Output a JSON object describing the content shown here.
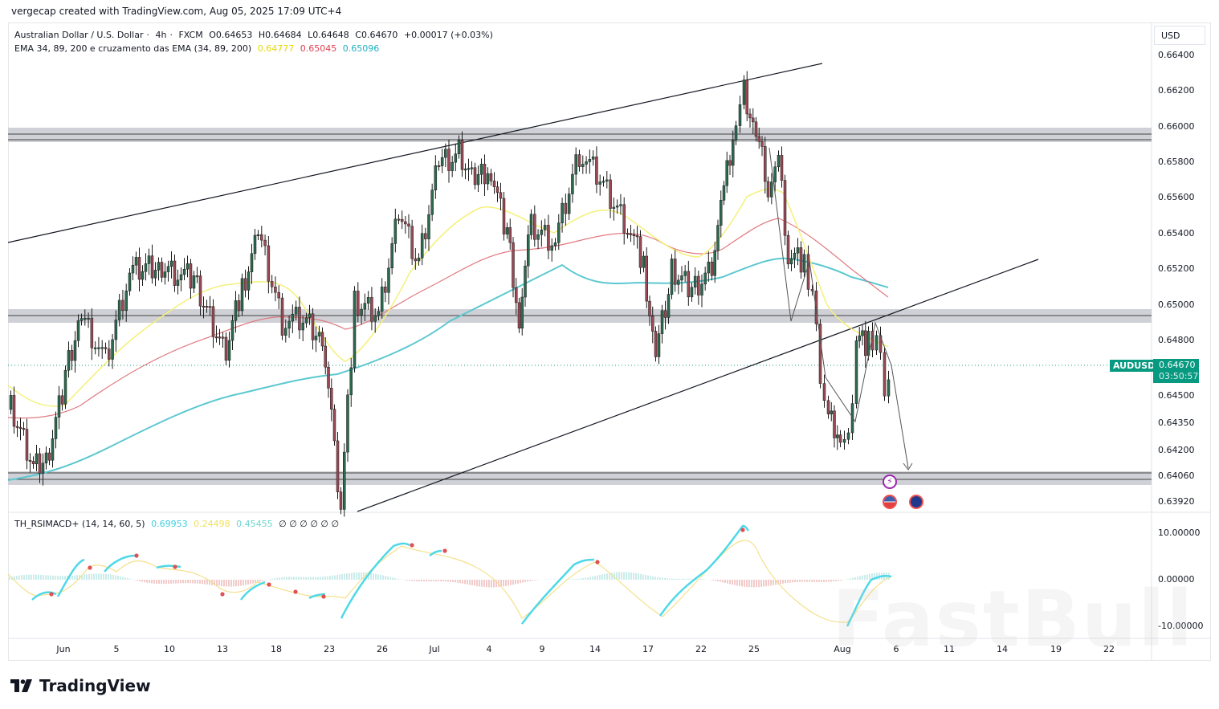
{
  "credit": "vergecap created with TradingView.com, Aug 05, 2025 17:09 UTC+4",
  "legend": {
    "symbol": "Australian Dollar / U.S. Dollar",
    "interval": "4h",
    "exchange": "FXCM",
    "open": "O0.64653",
    "high": "H0.64684",
    "low": "L0.64648",
    "close": "C0.64670",
    "change": "+0.00017 (+0.03%)",
    "ema_title": "EMA 34, 89, 200 e cruzamento das EMA (34, 89, 200)",
    "ema34": "0.64777",
    "ema89": "0.65045",
    "ema200": "0.65096"
  },
  "indicator": {
    "title": "TH_RSIMACD+ (14, 14, 60, 5)",
    "v1": "0.69953",
    "v2": "0.24498",
    "v3": "0.45455",
    "empties": "∅ ∅ ∅ ∅ ∅ ∅"
  },
  "price_axis": {
    "currency": "USD",
    "ticks": [
      "0.66400",
      "0.66200",
      "0.66000",
      "0.65800",
      "0.65600",
      "0.65400",
      "0.65200",
      "0.65000",
      "0.64800",
      "0.64500",
      "0.64350",
      "0.64200",
      "0.64060",
      "0.63920"
    ]
  },
  "indicator_axis": {
    "ticks": [
      "10.00000",
      "0.00000",
      "-10.00000"
    ]
  },
  "last_price": {
    "symbol": "AUDUSD",
    "price": "0.64670",
    "countdown": "03:50:57"
  },
  "time_axis": [
    "Jun",
    "5",
    "10",
    "13",
    "18",
    "23",
    "26",
    "Jul",
    "4",
    "9",
    "14",
    "17",
    "22",
    "25",
    "Aug",
    "6",
    "11",
    "14",
    "19",
    "22"
  ],
  "branding": {
    "logo": "TradingView",
    "watermark": "FastBull"
  },
  "colors": {
    "up": "#2d6a50",
    "down": "#9b4a55",
    "ema34": "#f5f07a",
    "ema89": "#e07a80",
    "ema200": "#5cc8d0",
    "zone": "#cfd1d6",
    "last": "#089981"
  },
  "chart_data": {
    "type": "candlestick",
    "title": "Australian Dollar / U.S. Dollar · 4h · FXCM",
    "xlabel": "",
    "ylabel": "USD",
    "ylim": [
      0.6388,
      0.6645
    ],
    "x_ticks": [
      "Jun",
      "5",
      "10",
      "13",
      "18",
      "23",
      "26",
      "Jul",
      "4",
      "9",
      "14",
      "17",
      "22",
      "25",
      "Aug",
      "6",
      "11",
      "14",
      "19",
      "22"
    ],
    "ohlc_last": {
      "open": 0.64653,
      "high": 0.64684,
      "low": 0.64648,
      "close": 0.6467,
      "change": 0.00017,
      "change_pct": 0.03
    },
    "series": [
      {
        "name": "EMA 34",
        "last": 0.64777,
        "color": "#f5f07a"
      },
      {
        "name": "EMA 89",
        "last": 0.65045,
        "color": "#e07a80"
      },
      {
        "name": "EMA 200",
        "last": 0.65096,
        "color": "#5cc8d0"
      }
    ],
    "approx_close_path": [
      {
        "x": "May 30",
        "y": 0.6445
      },
      {
        "x": "Jun 3",
        "y": 0.6475
      },
      {
        "x": "Jun 5",
        "y": 0.651
      },
      {
        "x": "Jun 10",
        "y": 0.651
      },
      {
        "x": "Jun 13",
        "y": 0.6475
      },
      {
        "x": "Jun 16",
        "y": 0.6535
      },
      {
        "x": "Jun 18",
        "y": 0.65
      },
      {
        "x": "Jun 20",
        "y": 0.649
      },
      {
        "x": "Jun 23",
        "y": 0.6398
      },
      {
        "x": "Jun 24",
        "y": 0.646
      },
      {
        "x": "Jun 26",
        "y": 0.656
      },
      {
        "x": "Jun 30",
        "y": 0.6585
      },
      {
        "x": "Jul 3",
        "y": 0.657
      },
      {
        "x": "Jul 7",
        "y": 0.6495
      },
      {
        "x": "Jul 10",
        "y": 0.656
      },
      {
        "x": "Jul 11",
        "y": 0.659
      },
      {
        "x": "Jul 15",
        "y": 0.6545
      },
      {
        "x": "Jul 17",
        "y": 0.646
      },
      {
        "x": "Jul 21",
        "y": 0.6515
      },
      {
        "x": "Jul 24",
        "y": 0.662
      },
      {
        "x": "Jul 25",
        "y": 0.658
      },
      {
        "x": "Jul 28",
        "y": 0.6545
      },
      {
        "x": "Jul 30",
        "y": 0.6525
      },
      {
        "x": "Jul 31",
        "y": 0.644
      },
      {
        "x": "Aug 1",
        "y": 0.6423
      },
      {
        "x": "Aug 4",
        "y": 0.6485
      },
      {
        "x": "Aug 5",
        "y": 0.6467
      }
    ],
    "annotations": [
      {
        "type": "horizontal_zone",
        "price": 0.6595,
        "label": "resistance"
      },
      {
        "type": "horizontal_zone",
        "price": 0.6494,
        "label": "mid zone"
      },
      {
        "type": "horizontal_zone",
        "price": 0.6406,
        "label": "support"
      },
      {
        "type": "trendline",
        "label": "upper channel",
        "from": {
          "x": "May 30",
          "y": 0.6539
        },
        "to": {
          "x": "Jul 25",
          "y": 0.6633
        }
      },
      {
        "type": "trendline",
        "label": "lower channel",
        "from": {
          "x": "Jun 25",
          "y": 0.639
        },
        "to": {
          "x": "Aug 14",
          "y": 0.6525
        }
      },
      {
        "type": "arrow",
        "label": "projected move",
        "from": {
          "x": "Aug 5",
          "y": 0.6467
        },
        "to": {
          "x": "Aug 6",
          "y": 0.6411
        }
      }
    ],
    "indicator": {
      "name": "TH_RSIMACD+ (14, 14, 60, 5)",
      "values": [
        0.69953,
        0.24498,
        0.45455
      ],
      "ylim": [
        -12,
        14
      ],
      "ticks": [
        10,
        0,
        -10
      ]
    }
  }
}
